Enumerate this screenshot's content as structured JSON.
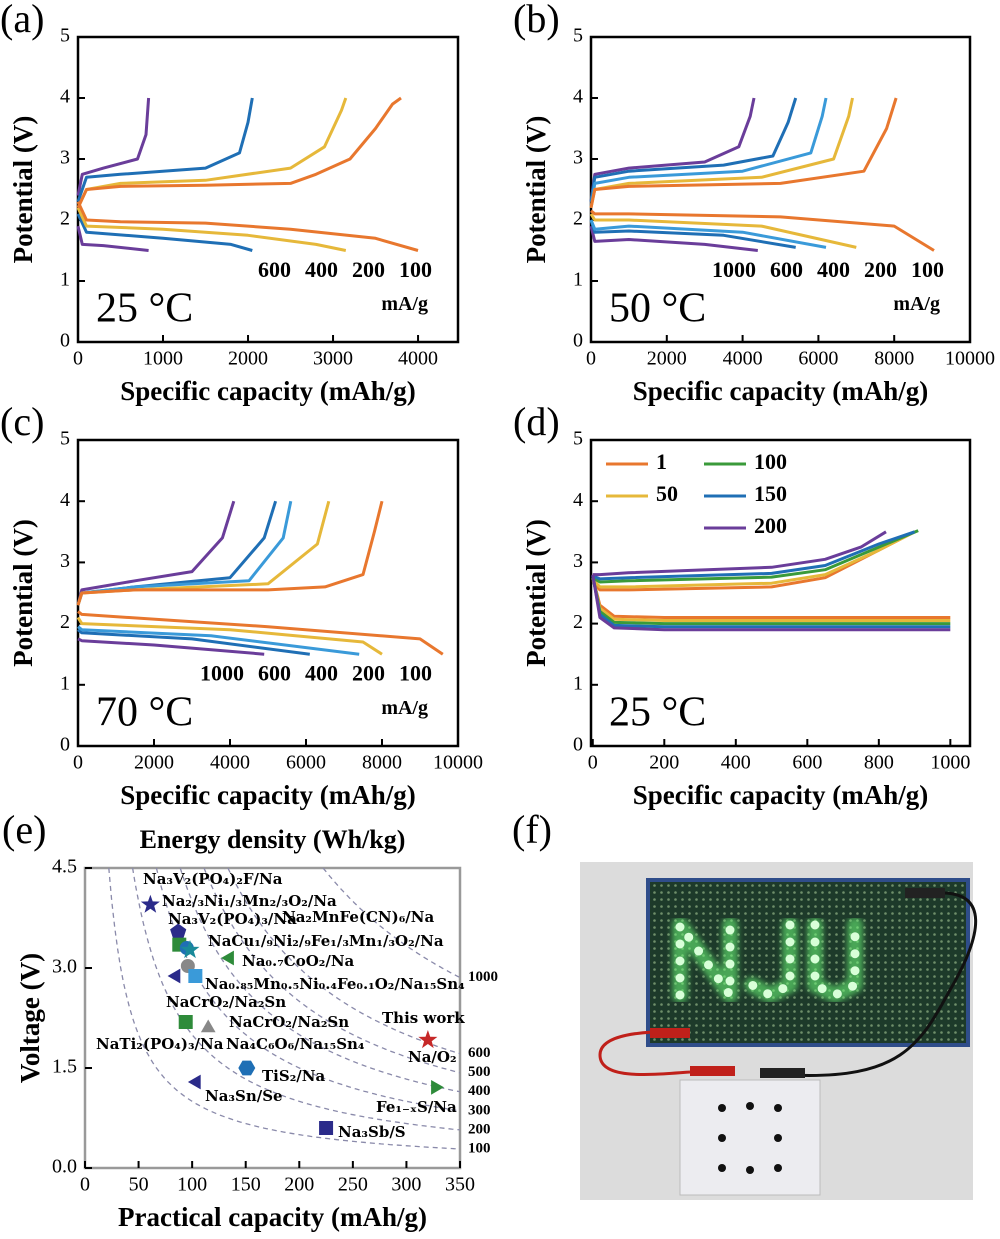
{
  "chart_data": [
    {
      "type": "line",
      "panel": "(a)",
      "xlabel": "Specific capacity (mAh/g)",
      "ylabel": "Potential (V)",
      "annotation": "25 °C",
      "unit_label": "mA/g",
      "legend": "labels",
      "xlim": [
        0,
        4470
      ],
      "xticks": [
        0,
        1000,
        2000,
        3000,
        4000
      ],
      "ylim": [
        0,
        5
      ],
      "yticks": [
        0,
        1,
        2,
        3,
        4,
        5
      ],
      "series": [
        {
          "name": "600",
          "color": "#6a3d9a",
          "x": [
            0,
            50,
            300,
            700,
            800,
            830,
            null,
            0,
            50,
            300,
            830
          ],
          "values": [
            2.4,
            2.75,
            2.85,
            3.0,
            3.4,
            4.0,
            null,
            1.9,
            1.6,
            1.58,
            1.5
          ]
        },
        {
          "name": "400",
          "color": "#1f6fb5",
          "x": [
            0,
            100,
            500,
            1500,
            1900,
            2000,
            2050,
            null,
            0,
            100,
            1000,
            1800,
            2050
          ],
          "values": [
            2.3,
            2.7,
            2.75,
            2.85,
            3.1,
            3.6,
            4.0,
            null,
            2.1,
            1.8,
            1.7,
            1.6,
            1.5
          ]
        },
        {
          "name": "200",
          "color": "#e6b83a",
          "x": [
            0,
            100,
            500,
            1500,
            2500,
            2900,
            3100,
            3150,
            null,
            0,
            100,
            1000,
            2000,
            2800,
            3150
          ],
          "values": [
            2.2,
            2.5,
            2.6,
            2.65,
            2.85,
            3.2,
            3.8,
            4.0,
            null,
            2.2,
            1.9,
            1.85,
            1.75,
            1.6,
            1.5
          ]
        },
        {
          "name": "100",
          "color": "#e8772e",
          "x": [
            0,
            100,
            500,
            1500,
            2500,
            2800,
            3200,
            3500,
            3700,
            3800,
            null,
            0,
            100,
            500,
            1500,
            2500,
            3500,
            4000
          ],
          "values": [
            2.2,
            2.5,
            2.55,
            2.57,
            2.6,
            2.75,
            3.0,
            3.5,
            3.9,
            4.0,
            null,
            2.3,
            2.0,
            1.97,
            1.95,
            1.85,
            1.7,
            1.5
          ]
        }
      ]
    },
    {
      "type": "line",
      "panel": "(b)",
      "xlabel": "Specific capacity (mAh/g)",
      "ylabel": "Potential (V)",
      "annotation": "50 °C",
      "unit_label": "mA/g",
      "legend": "labels",
      "xlim": [
        0,
        10000
      ],
      "xticks": [
        0,
        2000,
        4000,
        6000,
        8000,
        10000
      ],
      "ylim": [
        0,
        5
      ],
      "yticks": [
        0,
        1,
        2,
        3,
        4,
        5
      ],
      "series": [
        {
          "name": "1000",
          "color": "#6a3d9a",
          "x": [
            0,
            100,
            1000,
            3000,
            3900,
            4200,
            4300,
            null,
            0,
            100,
            1000,
            3000,
            4400
          ],
          "values": [
            2.3,
            2.75,
            2.85,
            2.95,
            3.2,
            3.7,
            4.0,
            null,
            1.9,
            1.65,
            1.68,
            1.6,
            1.5
          ]
        },
        {
          "name": "600",
          "color": "#1f6fb5",
          "x": [
            0,
            100,
            1000,
            3500,
            4800,
            5200,
            5400,
            null,
            0,
            100,
            1000,
            3500,
            5400
          ],
          "values": [
            2.3,
            2.7,
            2.8,
            2.9,
            3.05,
            3.6,
            4.0,
            null,
            2.0,
            1.8,
            1.82,
            1.75,
            1.55
          ]
        },
        {
          "name": "400",
          "color": "#3a9ad9",
          "x": [
            0,
            100,
            1000,
            4000,
            5800,
            6100,
            6200,
            null,
            0,
            100,
            1000,
            4000,
            6200
          ],
          "values": [
            2.2,
            2.6,
            2.7,
            2.8,
            3.1,
            3.7,
            4.0,
            null,
            2.0,
            1.85,
            1.9,
            1.8,
            1.55
          ]
        },
        {
          "name": "200",
          "color": "#e6b83a",
          "x": [
            0,
            100,
            1000,
            4500,
            6400,
            6800,
            6900,
            null,
            0,
            100,
            1000,
            4500,
            7000
          ],
          "values": [
            2.2,
            2.5,
            2.6,
            2.7,
            3.0,
            3.7,
            4.0,
            null,
            2.1,
            2.0,
            2.0,
            1.9,
            1.55
          ]
        },
        {
          "name": "100",
          "color": "#e8772e",
          "x": [
            0,
            100,
            1000,
            5000,
            7200,
            7800,
            8050,
            null,
            0,
            100,
            1000,
            5000,
            8000,
            9050
          ],
          "values": [
            2.2,
            2.5,
            2.55,
            2.6,
            2.8,
            3.5,
            4.0,
            null,
            2.15,
            2.1,
            2.1,
            2.05,
            1.9,
            1.5
          ]
        }
      ]
    },
    {
      "type": "line",
      "panel": "(c)",
      "xlabel": "Specific capacity (mAh/g)",
      "ylabel": "Potential (V)",
      "annotation": "70 °C",
      "unit_label": "mA/g",
      "legend": "labels",
      "xlim": [
        0,
        10000
      ],
      "xticks": [
        0,
        2000,
        4000,
        6000,
        8000,
        10000
      ],
      "ylim": [
        0,
        5
      ],
      "yticks": [
        0,
        1,
        2,
        3,
        4,
        5
      ],
      "series": [
        {
          "name": "1000",
          "color": "#6a3d9a",
          "x": [
            0,
            100,
            1500,
            3000,
            3800,
            4100,
            null,
            0,
            100,
            2000,
            4900
          ],
          "values": [
            2.3,
            2.55,
            2.7,
            2.85,
            3.4,
            4.0,
            null,
            1.75,
            1.72,
            1.65,
            1.5
          ]
        },
        {
          "name": "600",
          "color": "#1f6fb5",
          "x": [
            0,
            100,
            1500,
            4000,
            4900,
            5200,
            null,
            0,
            100,
            3000,
            6100
          ],
          "values": [
            2.3,
            2.5,
            2.6,
            2.75,
            3.4,
            4.0,
            null,
            1.9,
            1.85,
            1.75,
            1.5
          ]
        },
        {
          "name": "400",
          "color": "#3a9ad9",
          "x": [
            0,
            100,
            1500,
            4500,
            5400,
            5600,
            null,
            0,
            100,
            3500,
            7400
          ],
          "values": [
            2.3,
            2.5,
            2.6,
            2.7,
            3.4,
            4.0,
            null,
            1.95,
            1.9,
            1.8,
            1.5
          ]
        },
        {
          "name": "200",
          "color": "#e6b83a",
          "x": [
            0,
            100,
            1500,
            5000,
            6300,
            6600,
            null,
            0,
            100,
            4000,
            7500,
            8000
          ],
          "values": [
            2.3,
            2.5,
            2.55,
            2.65,
            3.3,
            4.0,
            null,
            2.1,
            2.0,
            1.9,
            1.7,
            1.5
          ]
        },
        {
          "name": "100",
          "color": "#e8772e",
          "x": [
            0,
            100,
            1500,
            5000,
            6500,
            7500,
            7800,
            8000,
            null,
            0,
            100,
            5000,
            9000,
            9600
          ],
          "values": [
            2.3,
            2.5,
            2.55,
            2.55,
            2.6,
            2.8,
            3.5,
            4.0,
            null,
            2.2,
            2.15,
            1.95,
            1.75,
            1.5
          ]
        }
      ]
    },
    {
      "type": "line",
      "panel": "(d)",
      "xlabel": "Specific capacity (mAh/g)",
      "ylabel": "Potential (V)",
      "annotation": "25 °C",
      "legend": "lines",
      "xlim": [
        -5,
        1055
      ],
      "xticks": [
        0,
        200,
        400,
        600,
        800,
        1000
      ],
      "ylim": [
        0,
        5
      ],
      "yticks": [
        0,
        1,
        2,
        3,
        4,
        5
      ],
      "series": [
        {
          "name": "1",
          "color": "#e8772e",
          "x": [
            0,
            20,
            100,
            500,
            650,
            800,
            900,
            null,
            0,
            20,
            60,
            200,
            1000
          ],
          "values": [
            2.7,
            2.55,
            2.55,
            2.6,
            2.75,
            3.2,
            3.5,
            null,
            2.75,
            2.3,
            2.12,
            2.1,
            2.1
          ]
        },
        {
          "name": "50",
          "color": "#e6b83a",
          "x": [
            0,
            20,
            100,
            500,
            650,
            800,
            900,
            null,
            0,
            20,
            60,
            200,
            1000
          ],
          "values": [
            2.72,
            2.6,
            2.6,
            2.66,
            2.8,
            3.2,
            3.5,
            null,
            2.75,
            2.25,
            2.07,
            2.05,
            2.05
          ]
        },
        {
          "name": "100",
          "color": "#3a9a3a",
          "x": [
            0,
            20,
            100,
            500,
            650,
            800,
            910,
            null,
            0,
            20,
            60,
            200,
            1000
          ],
          "values": [
            2.75,
            2.68,
            2.7,
            2.76,
            2.88,
            3.25,
            3.52,
            null,
            2.78,
            2.2,
            2.02,
            2.0,
            2.0
          ]
        },
        {
          "name": "150",
          "color": "#1f6fb5",
          "x": [
            0,
            20,
            100,
            500,
            650,
            800,
            900,
            null,
            0,
            20,
            60,
            200,
            1000
          ],
          "values": [
            2.78,
            2.73,
            2.75,
            2.82,
            2.95,
            3.3,
            3.5,
            null,
            2.78,
            2.15,
            1.97,
            1.95,
            1.95
          ]
        },
        {
          "name": "200",
          "color": "#6a3d9a",
          "x": [
            0,
            20,
            100,
            500,
            650,
            750,
            820,
            null,
            0,
            20,
            60,
            200,
            1000
          ],
          "values": [
            2.8,
            2.8,
            2.83,
            2.92,
            3.05,
            3.25,
            3.5,
            null,
            2.8,
            2.1,
            1.93,
            1.9,
            1.9
          ]
        }
      ]
    },
    {
      "type": "scatter",
      "panel": "(e)",
      "title": "Energy density (Wh/kg)",
      "xlabel": "Practical capacity (mAh/g)",
      "ylabel": "Voltage (V)",
      "xlim": [
        0,
        350
      ],
      "xticks": [
        0,
        50,
        100,
        150,
        200,
        250,
        300,
        350
      ],
      "ylim": [
        0,
        4.5
      ],
      "yticks": [
        {
          "value": 0,
          "label": "0.0"
        },
        1.5,
        {
          "value": 3,
          "label": "3.0"
        },
        4.5
      ],
      "energy_density": {
        "curve_color": "#8a8aaa",
        "values": [
          1000,
          600,
          500,
          400,
          300,
          200,
          100
        ],
        "colors": [
          "#999999",
          "#b22222",
          "#e6b83a",
          "#3a9a3a",
          "#3a9ad9",
          "#2b2b8a",
          "#6a3d9a"
        ]
      },
      "points": [
        {
          "label": "Na₃V₂(PO₄)₂F/Na",
          "x": 87,
          "y": 3.54,
          "color": "#2b2b8a",
          "marker": "pentagon"
        },
        {
          "label": "Na₂/₃Ni₁/₃Mn₂/₃O₂/Na",
          "x": 61,
          "y": 3.95,
          "color": "#2b2b8a",
          "marker": "star"
        },
        {
          "label": "Na₃V₂(PO₄)₃/Na",
          "x": 88,
          "y": 3.35,
          "color": "#2e8b3a",
          "marker": "square"
        },
        {
          "label": "Na₂MnFe(CN)₆/Na",
          "x": 95,
          "y": 3.3,
          "color": "#1f6fb5",
          "marker": "circle"
        },
        {
          "label": "NaCu₁/₉Ni₂/₉Fe₁/₃Mn₁/₃O₂/Na",
          "x": 98,
          "y": 3.27,
          "color": "#1a8a9a",
          "marker": "star"
        },
        {
          "label": "Na₀.₇CoO₂/Na",
          "x": 135,
          "y": 3.15,
          "color": "#2e8b3a",
          "marker": "triangle-left"
        },
        {
          "label": "Na₀.₈₅Mn₀.₅Ni₀.₄Fe₀.₁O₂/Na₁₅Sn₄",
          "x": 96,
          "y": 3.03,
          "color": "#888888",
          "marker": "circle"
        },
        {
          "label": "NaCrO₂/Na₂Sn",
          "x": 85,
          "y": 2.88,
          "color": "#2b2b8a",
          "marker": "triangle-left"
        },
        {
          "label": "NaCrO₂/Na₂Sn",
          "x": 103,
          "y": 2.88,
          "color": "#3a9ad9",
          "marker": "square"
        },
        {
          "label": "NaTi₂(PO₄)₃/Na",
          "x": 94,
          "y": 2.19,
          "color": "#2e8b3a",
          "marker": "square"
        },
        {
          "label": "Na₄C₆O₆/Na₁₅Sn₄",
          "x": 115,
          "y": 2.1,
          "color": "#888888",
          "marker": "triangle-up"
        },
        {
          "label": "TiS₂/Na",
          "x": 151,
          "y": 1.5,
          "color": "#1f6fb5",
          "marker": "hexagon"
        },
        {
          "label": "Na₃Sn/Se",
          "x": 104,
          "y": 1.29,
          "color": "#2b2b8a",
          "marker": "triangle-left"
        },
        {
          "label": "Na₃Sb/S",
          "x": 225,
          "y": 0.6,
          "color": "#2b2b8a",
          "marker": "square"
        },
        {
          "label": "Fe₁₋ₓS/Na",
          "x": 327,
          "y": 1.21,
          "color": "#2e8b3a",
          "marker": "triangle-right"
        },
        {
          "label": "Na/O₂",
          "annotation": "This work",
          "x": 320,
          "y": 1.92,
          "color": "#c62828",
          "marker": "star"
        }
      ]
    }
  ],
  "photo": {
    "panel": "(f)"
  }
}
